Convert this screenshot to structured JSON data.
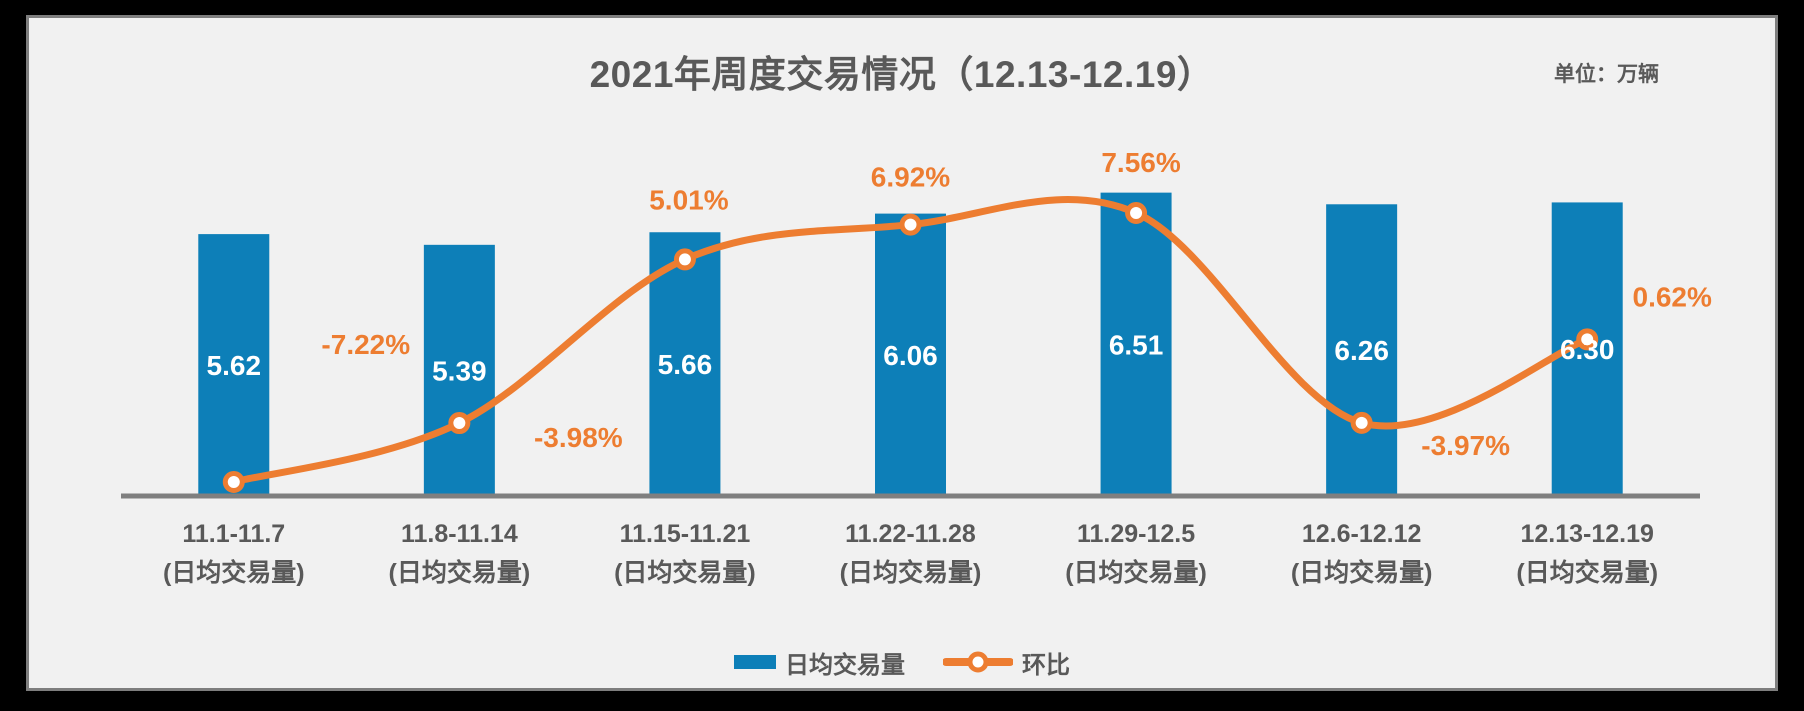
{
  "header": {
    "title": "2021年周度交易情况（12.13-12.19）",
    "unit": "单位：万辆"
  },
  "chart_data": {
    "type": "combo-bar-line",
    "title": "2021年周度交易情况（12.13-12.19）",
    "unit": "单位：万辆",
    "categories": [
      "11.1-11.7",
      "11.8-11.14",
      "11.15-11.21",
      "11.22-11.28",
      "11.29-12.5",
      "12.6-12.12",
      "12.13-12.19"
    ],
    "category_sublabel": "(日均交易量)",
    "series": [
      {
        "name": "日均交易量",
        "type": "bar",
        "values": [
          5.62,
          5.39,
          5.66,
          6.06,
          6.51,
          6.26,
          6.3
        ],
        "value_labels": [
          "5.62",
          "5.39",
          "5.66",
          "6.06",
          "6.51",
          "6.26",
          "6.30"
        ],
        "color": "#0d7fb8",
        "value_label_color": "#ffffff"
      },
      {
        "name": "环比",
        "type": "line",
        "values": [
          -7.22,
          -3.98,
          5.01,
          6.92,
          7.56,
          -3.97,
          0.62
        ],
        "value_labels": [
          "-7.22%",
          "-3.98%",
          "5.01%",
          "6.92%",
          "7.56%",
          "-3.97%",
          "0.62%"
        ],
        "color": "#ed7d31",
        "marker": "open-circle"
      }
    ],
    "legend": {
      "position": "bottom",
      "items": [
        "日均交易量",
        "环比"
      ]
    },
    "axes": {
      "x_axis_visible": true,
      "x_axis_color": "#7f7f7f",
      "y_axes_visible": false,
      "bar_axis_min": 0
    }
  },
  "colors": {
    "background": "#f1f1f1",
    "frame": "#000000",
    "card_border": "#7e7e7e",
    "text": "#595959",
    "bar": "#0d7fb8",
    "line": "#ed7d31",
    "axis": "#7f7f7f"
  }
}
